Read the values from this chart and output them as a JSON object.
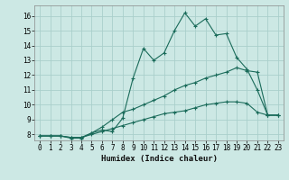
{
  "title": "",
  "xlabel": "Humidex (Indice chaleur)",
  "ylabel": "",
  "bg_color": "#cce8e4",
  "grid_color": "#aacfcb",
  "line_color": "#1a6b5a",
  "xlim": [
    -0.5,
    23.5
  ],
  "ylim": [
    7.6,
    16.7
  ],
  "xticks": [
    0,
    1,
    2,
    3,
    4,
    5,
    6,
    7,
    8,
    9,
    10,
    11,
    12,
    13,
    14,
    15,
    16,
    17,
    18,
    19,
    20,
    21,
    22,
    23
  ],
  "yticks": [
    8,
    9,
    10,
    11,
    12,
    13,
    14,
    15,
    16
  ],
  "curve1_x": [
    0,
    1,
    2,
    3,
    4,
    5,
    6,
    7,
    8,
    9,
    10,
    11,
    12,
    13,
    14,
    15,
    16,
    17,
    18,
    19,
    20,
    21,
    22,
    23
  ],
  "curve1_y": [
    7.9,
    7.9,
    7.9,
    7.75,
    7.75,
    8.1,
    8.3,
    8.2,
    9.1,
    11.8,
    13.8,
    13.0,
    13.5,
    15.0,
    16.2,
    15.3,
    15.8,
    14.7,
    14.8,
    13.2,
    12.4,
    11.0,
    9.3,
    9.3
  ],
  "curve2_x": [
    0,
    1,
    2,
    3,
    4,
    5,
    6,
    7,
    8,
    9,
    10,
    11,
    12,
    13,
    14,
    15,
    16,
    17,
    18,
    19,
    20,
    21,
    22,
    23
  ],
  "curve2_y": [
    7.9,
    7.9,
    7.9,
    7.8,
    7.8,
    8.1,
    8.5,
    9.0,
    9.5,
    9.7,
    10.0,
    10.3,
    10.6,
    11.0,
    11.3,
    11.5,
    11.8,
    12.0,
    12.2,
    12.5,
    12.3,
    12.2,
    9.3,
    9.3
  ],
  "curve3_x": [
    0,
    1,
    2,
    3,
    4,
    5,
    6,
    7,
    8,
    9,
    10,
    11,
    12,
    13,
    14,
    15,
    16,
    17,
    18,
    19,
    20,
    21,
    22,
    23
  ],
  "curve3_y": [
    7.9,
    7.9,
    7.9,
    7.8,
    7.8,
    8.0,
    8.2,
    8.4,
    8.6,
    8.8,
    9.0,
    9.2,
    9.4,
    9.5,
    9.6,
    9.8,
    10.0,
    10.1,
    10.2,
    10.2,
    10.1,
    9.5,
    9.3,
    9.3
  ],
  "marker": "+",
  "markersize": 3,
  "linewidth": 0.8,
  "tick_fontsize": 5.5,
  "xlabel_fontsize": 6.5
}
